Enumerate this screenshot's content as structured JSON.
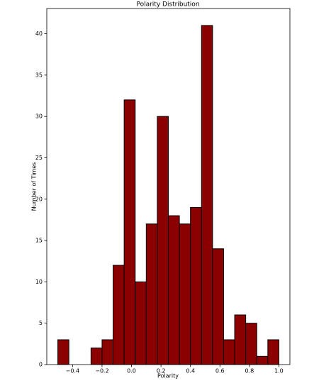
{
  "chart_data": {
    "type": "histogram",
    "title": "Polarity Distribution",
    "x_label": "Polarity",
    "y_label": "Number of Times",
    "bins": [
      -0.5,
      -0.425,
      -0.35,
      -0.275,
      -0.2,
      -0.125,
      -0.05,
      0.025,
      0.1,
      0.175,
      0.25,
      0.325,
      0.4,
      0.475,
      0.55,
      0.625,
      0.7,
      0.775,
      0.85,
      0.925,
      1.0
    ],
    "values": [
      3,
      0,
      0,
      2,
      3,
      12,
      32,
      10,
      17,
      30,
      18,
      17,
      19,
      41,
      14,
      3,
      6,
      5,
      1,
      3
    ],
    "color": "#8b0000",
    "edgecolor": "#000000",
    "xlim": [
      -0.575,
      1.075
    ],
    "ylim": [
      0,
      43.05
    ],
    "xticks": [
      {
        "value": -0.4,
        "label": "−0.4"
      },
      {
        "value": -0.2,
        "label": "−0.2"
      },
      {
        "value": 0,
        "label": "0.0"
      },
      {
        "value": 0.2,
        "label": "0.2"
      },
      {
        "value": 0.4,
        "label": "0.4"
      },
      {
        "value": 0.6,
        "label": "0.6"
      },
      {
        "value": 0.8,
        "label": "0.8"
      },
      {
        "value": 1,
        "label": "1.0"
      }
    ],
    "yticks": [
      0,
      5,
      10,
      15,
      20,
      25,
      30,
      35,
      40
    ]
  }
}
